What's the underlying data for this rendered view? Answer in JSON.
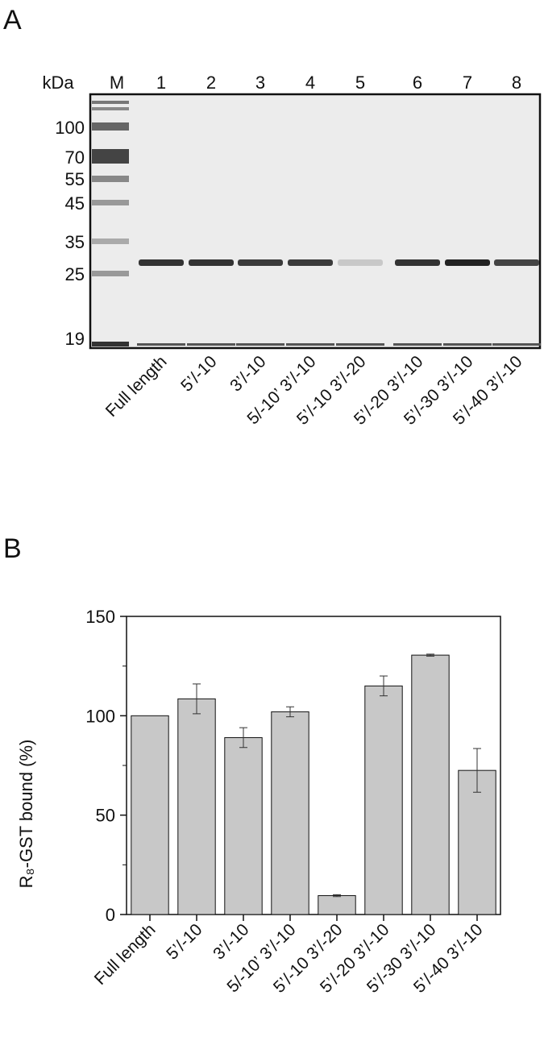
{
  "panel_a": {
    "label": "A",
    "unit_label": "kDa",
    "marker_lane": "M",
    "lanes": [
      "1",
      "2",
      "3",
      "4",
      "5",
      "6",
      "7",
      "8"
    ],
    "mw_markers": [
      "100",
      "70",
      "55",
      "45",
      "35",
      "25",
      "19"
    ],
    "lane_names": [
      "Full length",
      "5’/-10",
      "3’/-10",
      "5/-10’ 3’/-10",
      "5’/-10 3’/-20",
      "5’/-20 3’/-10",
      "5’/-30 3’/-10",
      "5’/-40 3’/-10"
    ]
  },
  "panel_b": {
    "label": "B"
  },
  "chart_data": {
    "type": "bar",
    "y_label": "R₈-GST bound (%)",
    "categories": [
      "Full length",
      "5’/-10",
      "3’/-10",
      "5/-10’ 3’/-10",
      "5’/-10 3’/-20",
      "5’/-20 3’/-10",
      "5’/-30 3’/-10",
      "5’/-40 3’/-10"
    ],
    "values": [
      100,
      108.5,
      89,
      102,
      9.5,
      115,
      130.5,
      72.5
    ],
    "errors": [
      0,
      7.5,
      5,
      2.5,
      0.5,
      5,
      0.5,
      11
    ],
    "color": "#c8c8c8",
    "ylim": [
      0,
      150
    ],
    "yticks": [
      0,
      50,
      100,
      150
    ],
    "minor_yticks": [
      25,
      75,
      125
    ]
  }
}
